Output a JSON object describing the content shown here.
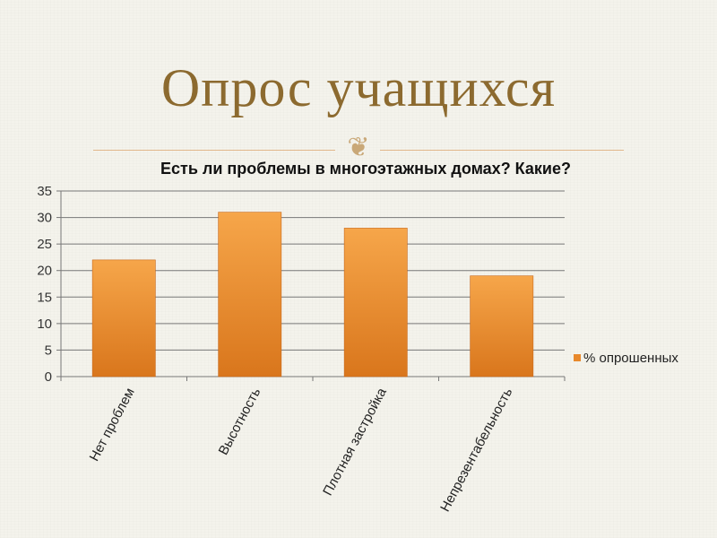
{
  "slide": {
    "title": "Опрос учащихся"
  },
  "colors": {
    "title": "#8c6a2f",
    "divider": "#e0b68a",
    "bar_light": "#f6a64a",
    "bar_dark": "#d9761c",
    "grid": "#777777"
  },
  "chart_data": {
    "type": "bar",
    "title": "Есть ли проблемы в многоэтажных домах? Какие?",
    "categories": [
      "Нет проблем",
      "Высотность",
      "Плотная застройка",
      "Непрезентабельность"
    ],
    "series": [
      {
        "name": "% опрошенных",
        "values": [
          22,
          31,
          28,
          19
        ]
      }
    ],
    "yticks": [
      "0",
      "5",
      "10",
      "15",
      "20",
      "25",
      "30",
      "35"
    ],
    "ylim": [
      0,
      35
    ],
    "xlabel": "",
    "ylabel": "",
    "grid": true,
    "legend": "right"
  }
}
